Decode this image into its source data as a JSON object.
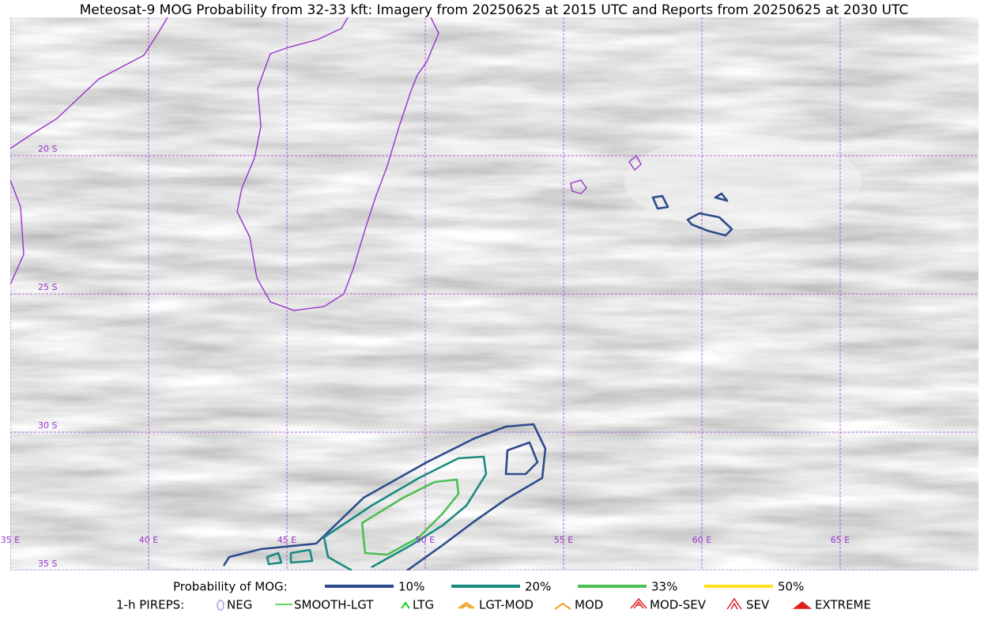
{
  "title": "Meteosat-9 MOG Probability from 32-33 kft: Imagery from 20250625 at 2015 UTC and Reports from 20250625 at 2030 UTC",
  "map": {
    "lat_labels": [
      "20 S",
      "25 S",
      "30 S",
      "35 S"
    ],
    "lon_labels": [
      "35 E",
      "40 E",
      "45 E",
      "50 E",
      "55 E",
      "60 E",
      "65 E"
    ]
  },
  "probability_legend": {
    "label": "Probability of MOG:",
    "items": [
      {
        "name": "10%",
        "color": "#2d4b8c"
      },
      {
        "name": "20%",
        "color": "#1b8a80"
      },
      {
        "name": "33%",
        "color": "#4cbf52"
      },
      {
        "name": "50%",
        "color": "#ffe01a"
      }
    ]
  },
  "pirep_legend": {
    "label": "1-h PIREPS:",
    "items": [
      {
        "name": "NEG",
        "color": "#b8b4f0"
      },
      {
        "name": "SMOOTH-LGT",
        "color": "#33cc33"
      },
      {
        "name": "LTG",
        "color": "#22cc22"
      },
      {
        "name": "LGT-MOD",
        "color": "#f0a020"
      },
      {
        "name": "MOD",
        "color": "#f0a020"
      },
      {
        "name": "MOD-SEV",
        "color": "#e02020"
      },
      {
        "name": "SEV",
        "color": "#e02020"
      },
      {
        "name": "EXTREME",
        "color": "#e02020"
      }
    ]
  }
}
